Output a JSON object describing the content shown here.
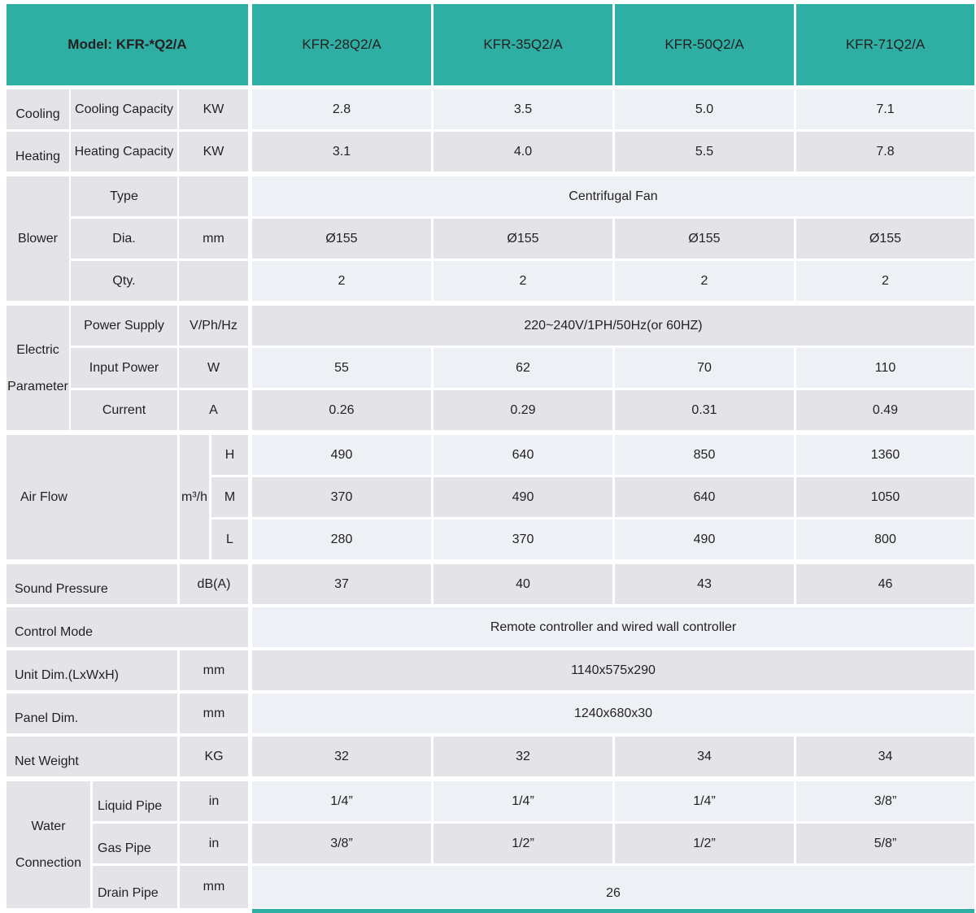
{
  "colors": {
    "teal": "#2FAEA4",
    "row_light": "#EDF1F5",
    "row_gray": "#E4E4E8",
    "text": "#231F20"
  },
  "header": {
    "model_label": "Model: KFR-*Q2/A",
    "columns": [
      "KFR-28Q2/A",
      "KFR-35Q2/A",
      "KFR-50Q2/A",
      "KFR-71Q2/A"
    ]
  },
  "cooling": {
    "row_label": "Cooling",
    "spec_label": "Cooling Capacity",
    "unit": "KW",
    "values": [
      "2.8",
      "3.5",
      "5.0",
      "7.1"
    ]
  },
  "heating": {
    "row_label": "Heating",
    "spec_label": "Heating Capacity",
    "unit": "KW",
    "values": [
      "3.1",
      "4.0",
      "5.5",
      "7.8"
    ]
  },
  "blower": {
    "section_label": "Blower",
    "type": {
      "label": "Type",
      "value": "Centrifugal Fan"
    },
    "dia": {
      "label": "Dia.",
      "unit": "mm",
      "values": [
        "Ø155",
        "Ø155",
        "Ø155",
        "Ø155"
      ]
    },
    "qty": {
      "label": "Qty.",
      "values": [
        "2",
        "2",
        "2",
        "2"
      ]
    }
  },
  "electric": {
    "section_label_line1": "Electric",
    "section_label_line2": "Parameter",
    "power_supply": {
      "label": "Power Supply",
      "unit": "V/Ph/Hz",
      "value": "220~240V/1PH/50Hz(or 60HZ)"
    },
    "input_power": {
      "label": "Input Power",
      "unit": "W",
      "values": [
        "55",
        "62",
        "70",
        "110"
      ]
    },
    "current": {
      "label": "Current",
      "unit": "A",
      "values": [
        "0.26",
        "0.29",
        "0.31",
        "0.49"
      ]
    }
  },
  "air_flow": {
    "section_label": "Air Flow",
    "unit": "m³/h",
    "high": {
      "label": "H",
      "values": [
        "490",
        "640",
        "850",
        "1360"
      ]
    },
    "medium": {
      "label": "M",
      "values": [
        "370",
        "490",
        "640",
        "1050"
      ]
    },
    "low": {
      "label": "L",
      "values": [
        "280",
        "370",
        "490",
        "800"
      ]
    }
  },
  "sound_pressure": {
    "label": "Sound Pressure",
    "unit": "dB(A)",
    "values": [
      "37",
      "40",
      "43",
      "46"
    ]
  },
  "control_mode": {
    "label": "Control Mode",
    "value": "Remote controller and wired wall controller"
  },
  "unit_dim": {
    "label": "Unit Dim.(LxWxH)",
    "unit": "mm",
    "value": "1140x575x290"
  },
  "panel_dim": {
    "label": "Panel Dim.",
    "unit": "mm",
    "value": "1240x680x30"
  },
  "net_weight": {
    "label": "Net Weight",
    "unit": "KG",
    "values": [
      "32",
      "32",
      "34",
      "34"
    ]
  },
  "water": {
    "section_label_line1": "Water",
    "section_label_line2": "Connection",
    "liquid": {
      "label": "Liquid Pipe",
      "unit": "in",
      "values": [
        "1/4”",
        "1/4”",
        "1/4”",
        "3/8”"
      ]
    },
    "gas": {
      "label": "Gas Pipe",
      "unit": "in",
      "values": [
        "3/8”",
        "1/2”",
        "1/2”",
        "5/8”"
      ]
    },
    "drain": {
      "label": "Drain Pipe",
      "unit": "mm",
      "value": "26"
    }
  }
}
